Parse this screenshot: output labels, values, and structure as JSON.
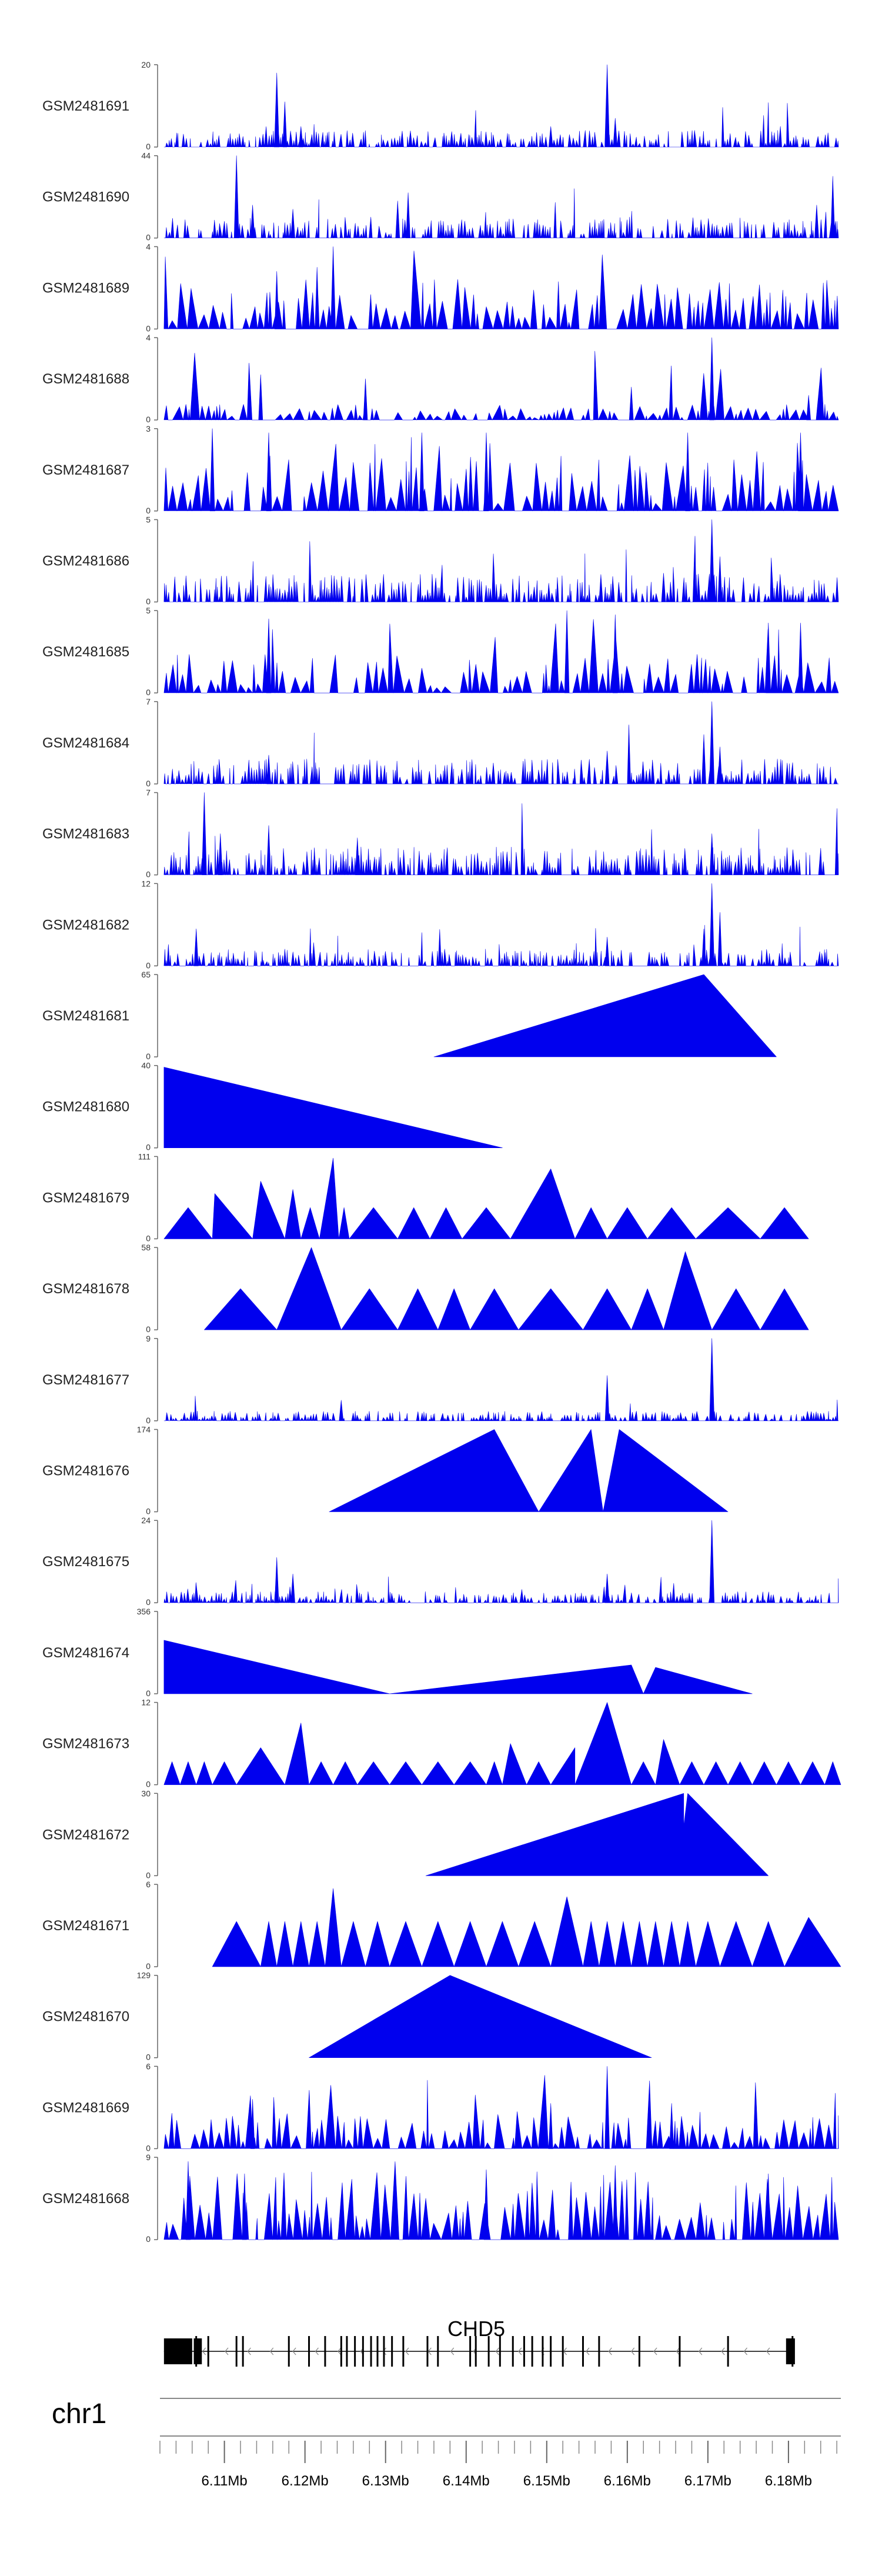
{
  "chart_data": {
    "type": "area",
    "title": "",
    "chromosome": "chr1",
    "region_mb": [
      6.102,
      6.1865
    ],
    "x_axis_ticks": [
      "6.11Mb",
      "6.12Mb",
      "6.13Mb",
      "6.14Mb",
      "6.15Mb",
      "6.16Mb",
      "6.17Mb",
      "6.18Mb"
    ],
    "x_axis_tick_values": [
      6.11,
      6.12,
      6.13,
      6.14,
      6.15,
      6.16,
      6.17,
      6.18
    ],
    "series_color": "#0000ee",
    "tracks": [
      {
        "name": "GSM2481691",
        "ymin": "0",
        "ymax": "20",
        "ylim": [
          0,
          20
        ],
        "style": "sparse",
        "peaks": [
          [
            6.1165,
            0.9
          ],
          [
            6.1175,
            0.55
          ],
          [
            6.1195,
            0.25
          ],
          [
            6.1575,
            1.0
          ],
          [
            6.1585,
            0.35
          ],
          [
            6.1505,
            0.25
          ]
        ],
        "baseline": 0.12,
        "density": 1.0,
        "seed": 11
      },
      {
        "name": "GSM2481690",
        "ymin": "0",
        "ymax": "44",
        "ylim": [
          0,
          44
        ],
        "style": "sparse",
        "peaks": [
          [
            6.1115,
            1.0
          ],
          [
            6.1135,
            0.4
          ],
          [
            6.1315,
            0.45
          ],
          [
            6.1328,
            0.55
          ],
          [
            6.1185,
            0.35
          ],
          [
            6.1855,
            0.75
          ],
          [
            6.1835,
            0.4
          ]
        ],
        "baseline": 0.15,
        "density": 0.8,
        "seed": 21
      },
      {
        "name": "GSM2481689",
        "ymin": "0",
        "ymax": "4",
        "ylim": [
          0,
          4
        ],
        "style": "dense",
        "peaks": [
          [
            6.1235,
            1.0
          ],
          [
            6.1215,
            0.75
          ],
          [
            6.1165,
            0.7
          ]
        ],
        "baseline": 0.45,
        "density": 0.9,
        "seed": 31
      },
      {
        "name": "GSM2481688",
        "ymin": "0",
        "ymax": "4",
        "ylim": [
          0,
          4
        ],
        "style": "dense",
        "peaks": [
          [
            6.1705,
            1.0
          ],
          [
            6.1275,
            0.5
          ],
          [
            6.1145,
            0.55
          ],
          [
            6.1605,
            0.4
          ],
          [
            6.1825,
            0.3
          ]
        ],
        "baseline": 0.15,
        "density": 0.85,
        "seed": 41
      },
      {
        "name": "GSM2481687",
        "ymin": "0",
        "ymax": "3",
        "ylim": [
          0,
          3
        ],
        "style": "dense",
        "peaks": [
          [
            6.1085,
            1.0
          ],
          [
            6.1155,
            0.95
          ],
          [
            6.1345,
            0.95
          ],
          [
            6.1425,
            0.95
          ],
          [
            6.1675,
            0.95
          ],
          [
            6.1815,
            0.95
          ]
        ],
        "baseline": 0.6,
        "density": 0.75,
        "seed": 51
      },
      {
        "name": "GSM2481686",
        "ymin": "0",
        "ymax": "5",
        "ylim": [
          0,
          5
        ],
        "style": "sparse",
        "peaks": [
          [
            6.1705,
            1.0
          ],
          [
            6.1715,
            0.55
          ],
          [
            6.1645,
            0.35
          ],
          [
            6.1255,
            0.3
          ]
        ],
        "baseline": 0.2,
        "density": 1.0,
        "seed": 61
      },
      {
        "name": "GSM2481685",
        "ymin": "0",
        "ymax": "5",
        "ylim": [
          0,
          5
        ],
        "style": "dense",
        "peaks": [
          [
            6.1525,
            1.0
          ],
          [
            6.1155,
            0.9
          ],
          [
            6.1585,
            0.95
          ],
          [
            6.1815,
            0.85
          ],
          [
            6.1775,
            0.85
          ]
        ],
        "baseline": 0.35,
        "density": 0.9,
        "seed": 71
      },
      {
        "name": "GSM2481684",
        "ymin": "0",
        "ymax": "7",
        "ylim": [
          0,
          7
        ],
        "style": "sparse",
        "peaks": [
          [
            6.1705,
            1.0
          ],
          [
            6.1695,
            0.6
          ],
          [
            6.1715,
            0.45
          ],
          [
            6.1575,
            0.4
          ],
          [
            6.1155,
            0.35
          ]
        ],
        "baseline": 0.18,
        "density": 1.0,
        "seed": 81
      },
      {
        "name": "GSM2481683",
        "ymin": "0",
        "ymax": "7",
        "ylim": [
          0,
          7
        ],
        "style": "sparse",
        "peaks": [
          [
            6.1075,
            1.0
          ],
          [
            6.1095,
            0.5
          ],
          [
            6.1155,
            0.6
          ],
          [
            6.1705,
            0.5
          ],
          [
            6.1265,
            0.45
          ]
        ],
        "baseline": 0.2,
        "density": 1.0,
        "seed": 91
      },
      {
        "name": "GSM2481682",
        "ymin": "0",
        "ymax": "12",
        "ylim": [
          0,
          12
        ],
        "style": "sparse",
        "peaks": [
          [
            6.1705,
            1.0
          ],
          [
            6.1715,
            0.65
          ],
          [
            6.1695,
            0.45
          ],
          [
            6.1065,
            0.45
          ],
          [
            6.1575,
            0.35
          ]
        ],
        "baseline": 0.12,
        "density": 1.0,
        "seed": 101
      },
      {
        "name": "GSM2481681",
        "ymin": "0",
        "ymax": "65",
        "ylim": [
          0,
          65
        ],
        "style": "polygon",
        "points": [
          [
            6.136,
            0
          ],
          [
            6.1695,
            1.0
          ],
          [
            6.1785,
            0
          ]
        ]
      },
      {
        "name": "GSM2481680",
        "ymin": "0",
        "ymax": "40",
        "ylim": [
          0,
          40
        ],
        "style": "polygon",
        "points": [
          [
            6.1025,
            0
          ],
          [
            6.1025,
            0.98
          ],
          [
            6.1445,
            0
          ]
        ]
      },
      {
        "name": "GSM2481679",
        "ymin": "0",
        "ymax": "111",
        "ylim": [
          0,
          111
        ],
        "style": "tri",
        "gaps": [
          6.1025,
          6.1085,
          6.1135,
          6.1175,
          6.1195,
          6.1218,
          6.1242,
          6.1255,
          6.1315,
          6.1355,
          6.1395,
          6.1455,
          6.1535,
          6.1575,
          6.1625,
          6.1685,
          6.1765,
          6.1825
        ],
        "height": 0.38,
        "spikes": [
          [
            6.1235,
            0.98
          ],
          [
            6.1505,
            0.85
          ],
          [
            6.1145,
            0.7
          ],
          [
            6.1185,
            0.6
          ],
          [
            6.1088,
            0.55
          ]
        ]
      },
      {
        "name": "GSM2481678",
        "ymin": "0",
        "ymax": "58",
        "ylim": [
          0,
          58
        ],
        "style": "tri",
        "gaps": [
          6.1075,
          6.1165,
          6.1245,
          6.1315,
          6.1365,
          6.1405,
          6.1465,
          6.1545,
          6.1605,
          6.1645,
          6.1705,
          6.1765,
          6.1825
        ],
        "height": 0.5,
        "spikes": [
          [
            6.1208,
            1.0
          ],
          [
            6.1672,
            0.95
          ],
          [
            6.1655,
            0.5
          ]
        ]
      },
      {
        "name": "GSM2481677",
        "ymin": "0",
        "ymax": "9",
        "ylim": [
          0,
          9
        ],
        "style": "sparse",
        "peaks": [
          [
            6.1705,
            1.0
          ],
          [
            6.1575,
            0.55
          ],
          [
            6.1245,
            0.25
          ]
        ],
        "baseline": 0.07,
        "density": 0.9,
        "seed": 131
      },
      {
        "name": "GSM2481676",
        "ymin": "0",
        "ymax": "174",
        "ylim": [
          0,
          174
        ],
        "style": "polygon",
        "points": [
          [
            6.123,
            0
          ],
          [
            6.1435,
            1.0
          ],
          [
            6.149,
            0
          ],
          [
            6.1555,
            1.0
          ],
          [
            6.157,
            0
          ],
          [
            6.159,
            1.0
          ],
          [
            6.1725,
            0
          ]
        ]
      },
      {
        "name": "GSM2481675",
        "ymin": "0",
        "ymax": "24",
        "ylim": [
          0,
          24
        ],
        "style": "sparse",
        "peaks": [
          [
            6.1705,
            1.0
          ],
          [
            6.1705,
            0.6
          ],
          [
            6.1165,
            0.55
          ],
          [
            6.1185,
            0.35
          ],
          [
            6.1575,
            0.35
          ]
        ],
        "baseline": 0.08,
        "density": 1.0,
        "seed": 151
      },
      {
        "name": "GSM2481674",
        "ymin": "0",
        "ymax": "356",
        "ylim": [
          0,
          356
        ],
        "style": "polygon",
        "points": [
          [
            6.1025,
            0
          ],
          [
            6.1025,
            0.65
          ],
          [
            6.1305,
            0
          ],
          [
            6.1605,
            0.35
          ],
          [
            6.162,
            0
          ],
          [
            6.1635,
            0.32
          ],
          [
            6.1755,
            0
          ]
        ]
      },
      {
        "name": "GSM2481673",
        "ymin": "0",
        "ymax": "12",
        "ylim": [
          0,
          12
        ],
        "style": "tri",
        "gaps": [
          6.1025,
          6.1045,
          6.1065,
          6.1085,
          6.1115,
          6.1145,
          6.1175,
          6.1205,
          6.1235,
          6.1265,
          6.1305,
          6.1345,
          6.1385,
          6.1425,
          6.1445,
          6.1475,
          6.1505,
          6.1535,
          6.1575,
          6.1605,
          6.1635,
          6.1665,
          6.1695,
          6.1725,
          6.1755,
          6.1785,
          6.1815,
          6.1845,
          6.1865
        ],
        "height": 0.28,
        "spikes": [
          [
            6.1575,
            1.0
          ],
          [
            6.1455,
            0.5
          ],
          [
            6.1195,
            0.75
          ],
          [
            6.1645,
            0.55
          ],
          [
            6.1145,
            0.45
          ],
          [
            6.1535,
            0.45
          ]
        ]
      },
      {
        "name": "GSM2481672",
        "ymin": "0",
        "ymax": "30",
        "ylim": [
          0,
          30
        ],
        "style": "polygon",
        "points": [
          [
            6.135,
            0
          ],
          [
            6.167,
            1.0
          ],
          [
            6.167,
            0.6
          ],
          [
            6.1675,
            1.0
          ],
          [
            6.1775,
            0
          ]
        ]
      },
      {
        "name": "GSM2481671",
        "ymin": "0",
        "ymax": "6",
        "ylim": [
          0,
          6
        ],
        "style": "tri",
        "gaps": [
          6.1085,
          6.1145,
          6.1165,
          6.1185,
          6.1205,
          6.1225,
          6.1245,
          6.1275,
          6.1305,
          6.1345,
          6.1385,
          6.1425,
          6.1465,
          6.1505,
          6.1545,
          6.1565,
          6.1585,
          6.1605,
          6.1625,
          6.1645,
          6.1665,
          6.1685,
          6.1715,
          6.1755,
          6.1795,
          6.1825,
          6.1865
        ],
        "height": 0.55,
        "spikes": [
          [
            6.1235,
            0.95
          ],
          [
            6.1525,
            0.85
          ],
          [
            6.1825,
            0.6
          ],
          [
            6.1235,
            0.55
          ]
        ]
      },
      {
        "name": "GSM2481670",
        "ymin": "0",
        "ymax": "129",
        "ylim": [
          0,
          129
        ],
        "style": "polygon",
        "points": [
          [
            6.1205,
            0
          ],
          [
            6.138,
            1.0
          ],
          [
            6.163,
            0
          ]
        ]
      },
      {
        "name": "GSM2481669",
        "ymin": "0",
        "ymax": "6",
        "ylim": [
          0,
          6
        ],
        "style": "dense",
        "peaks": [
          [
            6.1575,
            1.0
          ],
          [
            6.1135,
            0.6
          ],
          [
            6.1505,
            0.55
          ],
          [
            6.1655,
            0.55
          ]
        ],
        "baseline": 0.3,
        "density": 1.0,
        "seed": 211
      },
      {
        "name": "GSM2481668",
        "ymin": "0",
        "ymax": "9",
        "ylim": [
          0,
          9
        ],
        "style": "dense",
        "peaks": [
          [
            6.1055,
            0.95
          ],
          [
            6.1585,
            0.9
          ],
          [
            6.1125,
            0.8
          ],
          [
            6.1775,
            0.8
          ],
          [
            6.1425,
            0.85
          ]
        ],
        "baseline": 0.55,
        "density": 1.0,
        "seed": 221
      }
    ],
    "gene": {
      "name": "CHD5",
      "strand": "-",
      "start_mb": 6.1025,
      "end_mb": 6.1805,
      "exons_mb": [
        6.1065,
        6.108,
        6.1115,
        6.1123,
        6.118,
        6.1205,
        6.1225,
        6.1245,
        6.1252,
        6.1262,
        6.1272,
        6.1282,
        6.129,
        6.1298,
        6.1308,
        6.1322,
        6.1352,
        6.1365,
        6.1405,
        6.1412,
        6.1428,
        6.1442,
        6.1458,
        6.1472,
        6.1482,
        6.1495,
        6.1505,
        6.152,
        6.1545,
        6.1565,
        6.1615,
        6.1665,
        6.1725,
        6.1805
      ],
      "big_exons_mb": [
        [
          6.1025,
          6.106
        ],
        [
          6.1062,
          6.1072
        ],
        [
          6.1797,
          6.1808
        ]
      ]
    }
  }
}
